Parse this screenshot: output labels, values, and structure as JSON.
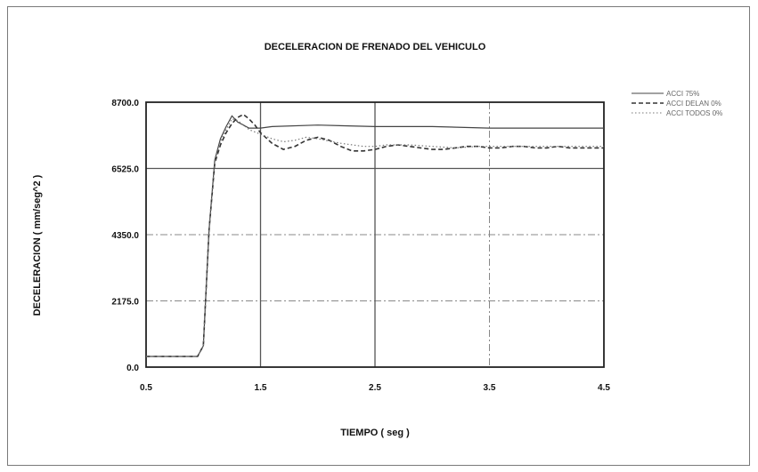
{
  "chart_data": {
    "type": "line",
    "title": "DECELERACION DE FRENADO DEL VEHICULO",
    "xlabel": "TIEMPO ( seg )",
    "ylabel": "DECELERACION  ( mm/seg^2 )",
    "xlim": [
      0.5,
      4.5
    ],
    "ylim": [
      0.0,
      8700.0
    ],
    "x_ticks": [
      {
        "value": 0.5,
        "label": "0.5"
      },
      {
        "value": 1.5,
        "label": "1.5"
      },
      {
        "value": 2.5,
        "label": "2.5"
      },
      {
        "value": 3.5,
        "label": "3.5"
      },
      {
        "value": 4.5,
        "label": "4.5"
      }
    ],
    "y_ticks": [
      {
        "value": 0.0,
        "label": "0.0"
      },
      {
        "value": 2175.0,
        "label": "2175.0"
      },
      {
        "value": 4350.0,
        "label": "4350.0"
      },
      {
        "value": 6525.0,
        "label": "6525.0"
      },
      {
        "value": 8700.0,
        "label": "8700.0"
      }
    ],
    "grid": true,
    "legend_position": "top-right",
    "series": [
      {
        "name": "ACCI 75%",
        "style": "solid",
        "color": "#444444",
        "x": [
          0.5,
          0.95,
          1.0,
          1.05,
          1.1,
          1.15,
          1.2,
          1.25,
          1.3,
          1.35,
          1.4,
          1.5,
          1.6,
          2.0,
          2.5,
          3.0,
          3.5,
          4.0,
          4.5
        ],
        "y": [
          350,
          350,
          700,
          4500,
          6800,
          7500,
          7900,
          8250,
          8050,
          7950,
          7850,
          7850,
          7900,
          7950,
          7900,
          7900,
          7850,
          7850,
          7850
        ]
      },
      {
        "name": "ACCI DELAN 0%",
        "style": "dashed",
        "color": "#333333",
        "x": [
          0.5,
          0.95,
          1.0,
          1.05,
          1.1,
          1.15,
          1.2,
          1.25,
          1.3,
          1.35,
          1.4,
          1.45,
          1.5,
          1.6,
          1.7,
          1.8,
          1.9,
          2.0,
          2.1,
          2.2,
          2.3,
          2.4,
          2.5,
          2.6,
          2.7,
          2.8,
          2.9,
          3.0,
          3.1,
          3.2,
          3.3,
          3.4,
          3.5,
          3.6,
          3.7,
          3.8,
          3.9,
          4.0,
          4.1,
          4.2,
          4.3,
          4.4,
          4.5
        ],
        "y": [
          350,
          350,
          700,
          4500,
          6700,
          7300,
          7700,
          8000,
          8200,
          8300,
          8150,
          7950,
          7700,
          7350,
          7150,
          7250,
          7450,
          7550,
          7450,
          7250,
          7100,
          7100,
          7150,
          7250,
          7300,
          7250,
          7200,
          7150,
          7150,
          7200,
          7250,
          7250,
          7200,
          7200,
          7250,
          7250,
          7200,
          7200,
          7250,
          7200,
          7200,
          7200,
          7200
        ]
      },
      {
        "name": "ACCI TODOS 0%",
        "style": "dotted",
        "color": "#777777",
        "x": [
          0.5,
          0.95,
          1.0,
          1.05,
          1.1,
          1.15,
          1.2,
          1.25,
          1.3,
          1.35,
          1.4,
          1.5,
          1.6,
          1.7,
          1.8,
          1.9,
          2.0,
          2.2,
          2.4,
          2.5,
          2.6,
          2.8,
          3.0,
          3.2,
          3.4,
          3.5,
          3.6,
          3.8,
          4.0,
          4.2,
          4.5
        ],
        "y": [
          350,
          350,
          700,
          4500,
          6750,
          7400,
          7800,
          8150,
          8100,
          7950,
          7800,
          7650,
          7500,
          7400,
          7450,
          7550,
          7500,
          7350,
          7250,
          7250,
          7300,
          7300,
          7250,
          7200,
          7250,
          7250,
          7250,
          7250,
          7250,
          7250,
          7250
        ]
      }
    ]
  }
}
